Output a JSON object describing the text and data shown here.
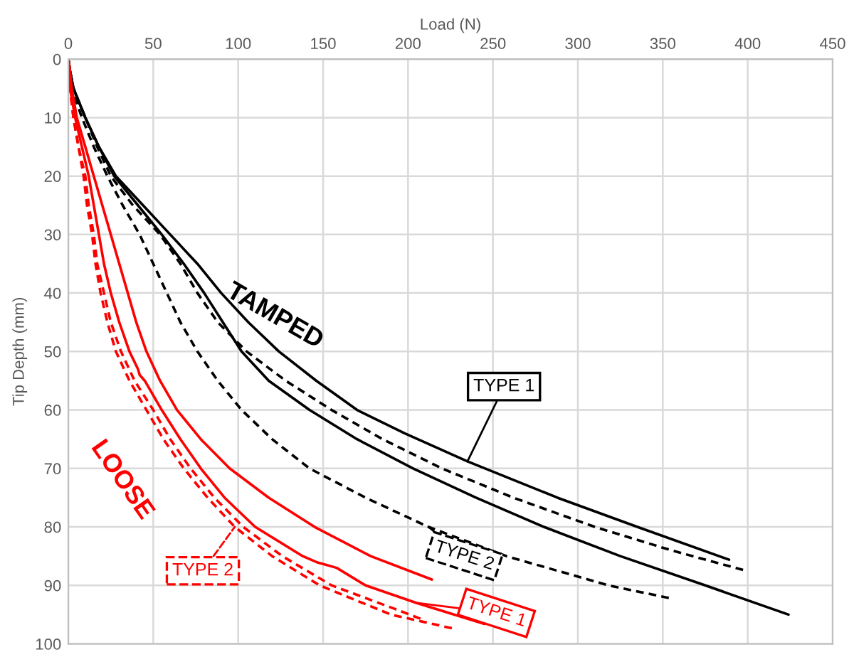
{
  "chart_data": {
    "type": "line",
    "xlabel": "Load (N)",
    "ylabel": "Tip Depth (mm)",
    "xlim": [
      0,
      450
    ],
    "xticks": [
      0,
      50,
      100,
      150,
      200,
      250,
      300,
      350,
      400,
      450
    ],
    "ylim": [
      100,
      0
    ],
    "yticks": [
      0,
      10,
      20,
      30,
      40,
      50,
      60,
      70,
      80,
      90,
      100
    ],
    "grid": true,
    "marker": "none",
    "series": [
      {
        "color": "#000000",
        "line_style": "solid",
        "x": [
          0,
          1,
          3,
          10,
          18,
          28,
          44,
          60,
          76,
          90,
          106,
          124,
          146,
          170,
          198,
          235,
          288,
          335,
          389
        ],
        "values": [
          0,
          2,
          5,
          10,
          15,
          20,
          25,
          30,
          35,
          40,
          45,
          50,
          55,
          60,
          64,
          68.8,
          75,
          80,
          85.6
        ]
      },
      {
        "color": "#000000",
        "line_style": "solid",
        "x": [
          0,
          1,
          3,
          10,
          18,
          27,
          41,
          55,
          68,
          80,
          91,
          102,
          118,
          142,
          170,
          203,
          240,
          280,
          325,
          375,
          424
        ],
        "values": [
          0,
          2,
          5,
          10,
          15,
          20,
          25,
          30,
          35,
          40,
          45,
          50,
          55,
          60,
          65,
          70,
          75,
          80,
          85,
          90,
          95
        ]
      },
      {
        "color": "#000000",
        "line_style": "dashed",
        "x": [
          0,
          1,
          3,
          10,
          17,
          25,
          38,
          54,
          66,
          76,
          88,
          105,
          128,
          155,
          185,
          220,
          262,
          310,
          355,
          399
        ],
        "values": [
          0,
          2,
          5,
          10,
          15,
          20,
          25,
          30,
          35,
          40,
          45,
          50,
          55,
          60,
          65,
          70,
          75,
          80,
          84,
          87.5
        ]
      },
      {
        "color": "#000000",
        "line_style": "dashed",
        "x": [
          0,
          1,
          2,
          8,
          15,
          23,
          32,
          42,
          50,
          58,
          66,
          76,
          88,
          102,
          120,
          142,
          175,
          212,
          258,
          318,
          356
        ],
        "values": [
          0,
          2,
          5,
          10,
          15,
          20,
          25,
          30,
          35,
          40,
          45,
          50,
          55,
          60,
          65,
          70,
          75,
          80,
          85,
          90,
          92.3
        ]
      },
      {
        "color": "#ff0000",
        "line_style": "solid",
        "x": [
          0,
          1,
          2,
          5,
          10,
          15,
          20,
          25,
          30,
          35,
          40,
          46,
          54,
          64,
          78,
          95,
          118,
          145,
          178,
          214
        ],
        "values": [
          0,
          2,
          5,
          10,
          15,
          20,
          25,
          30,
          35,
          40,
          45,
          50,
          55,
          60,
          65,
          70,
          75,
          80,
          85,
          89
        ]
      },
      {
        "color": "#ff0000",
        "line_style": "solid",
        "x": [
          0,
          0.5,
          1,
          4,
          8,
          12,
          15,
          18,
          21,
          25,
          30,
          36,
          41,
          42,
          45,
          55,
          66,
          78,
          92,
          110,
          138,
          146,
          158,
          175,
          205,
          245
        ],
        "values": [
          0,
          2,
          5,
          10,
          15,
          20,
          25,
          30,
          35,
          40,
          45,
          50,
          53,
          54,
          55,
          60,
          65,
          70,
          75,
          80,
          85,
          86,
          87,
          90,
          93,
          96.6
        ]
      },
      {
        "color": "#ff0000",
        "line_style": "dashed",
        "x": [
          0,
          0.5,
          1,
          3,
          6,
          9,
          11,
          14,
          16,
          19,
          23,
          28,
          36,
          46,
          56,
          68,
          82,
          98,
          120,
          148,
          190,
          227
        ],
        "values": [
          0,
          2,
          5,
          10,
          15,
          20,
          25,
          30,
          35,
          40,
          45,
          50,
          55,
          60,
          65,
          70,
          75,
          80,
          85,
          90,
          95,
          97.4
        ]
      },
      {
        "color": "#ff0000",
        "line_style": "dashed",
        "x": [
          0,
          0.5,
          1,
          3,
          6,
          10,
          12,
          15,
          17,
          21,
          25,
          31,
          39,
          50,
          60,
          72,
          86,
          103,
          126,
          155,
          192,
          210
        ],
        "values": [
          0,
          2,
          5,
          10,
          15,
          20,
          25,
          30,
          35,
          40,
          45,
          50,
          55,
          60,
          65,
          70,
          75,
          80,
          85,
          90,
          94,
          96
        ]
      }
    ],
    "annotations": [
      "TAMPED",
      "LOOSE",
      {
        "text": "TYPE 1",
        "x": 235,
        "y": 68.8
      },
      {
        "text": "TYPE 2",
        "x": 212,
        "y": 80
      },
      {
        "text": "TYPE 1",
        "x": 205,
        "y": 93
      },
      {
        "text": "TYPE 2",
        "x": 98,
        "y": 80
      }
    ]
  }
}
